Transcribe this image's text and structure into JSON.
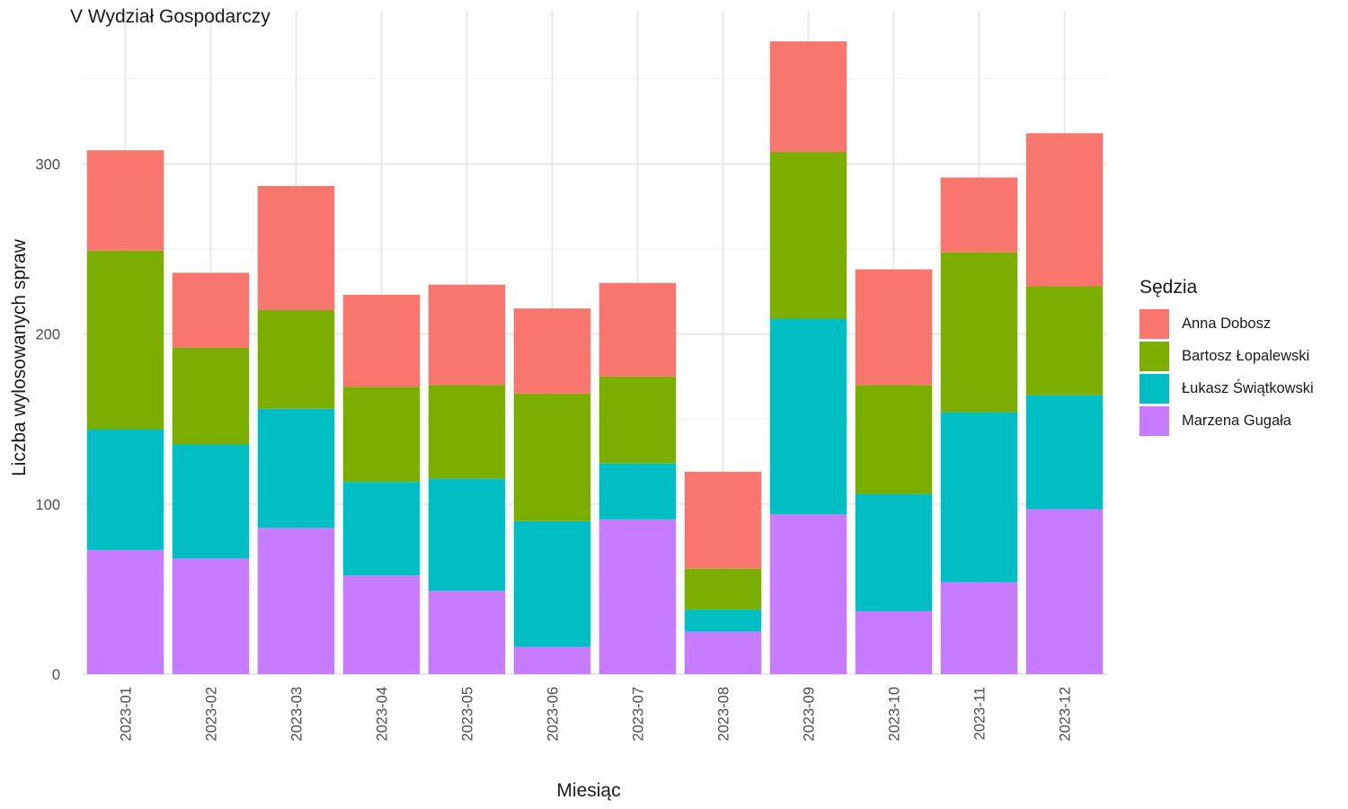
{
  "chart_data": {
    "type": "bar",
    "stacked": true,
    "title": "V Wydział Gospodarczy",
    "xlabel": "Miesiąc",
    "ylabel": "Liczba wylosowanych spraw",
    "ylim": [
      0,
      390
    ],
    "yticks": [
      0,
      100,
      200,
      300
    ],
    "grid": true,
    "legend_position": "right",
    "legend_title": "Sędzia",
    "categories": [
      "2023-01",
      "2023-02",
      "2023-03",
      "2023-04",
      "2023-05",
      "2023-06",
      "2023-07",
      "2023-08",
      "2023-09",
      "2023-10",
      "2023-11",
      "2023-12"
    ],
    "series": [
      {
        "name": "Marzena Gugała",
        "color": "#C77CFF",
        "values": [
          73,
          68,
          86,
          58,
          49,
          16,
          91,
          25,
          94,
          37,
          54,
          97
        ]
      },
      {
        "name": "Łukasz Świątkowski",
        "color": "#00BFC4",
        "values": [
          71,
          67,
          70,
          55,
          66,
          74,
          33,
          13,
          115,
          69,
          100,
          67
        ]
      },
      {
        "name": "Bartosz Łopalewski",
        "color": "#7CAE00",
        "values": [
          105,
          57,
          58,
          56,
          55,
          75,
          51,
          24,
          98,
          64,
          94,
          64
        ]
      },
      {
        "name": "Anna Dobosz",
        "color": "#F8766D",
        "values": [
          59,
          44,
          73,
          54,
          59,
          50,
          55,
          57,
          65,
          68,
          44,
          90
        ]
      }
    ]
  },
  "legend_order": [
    "Anna Dobosz",
    "Bartosz Łopalewski",
    "Łukasz Świątkowski",
    "Marzena Gugała"
  ]
}
